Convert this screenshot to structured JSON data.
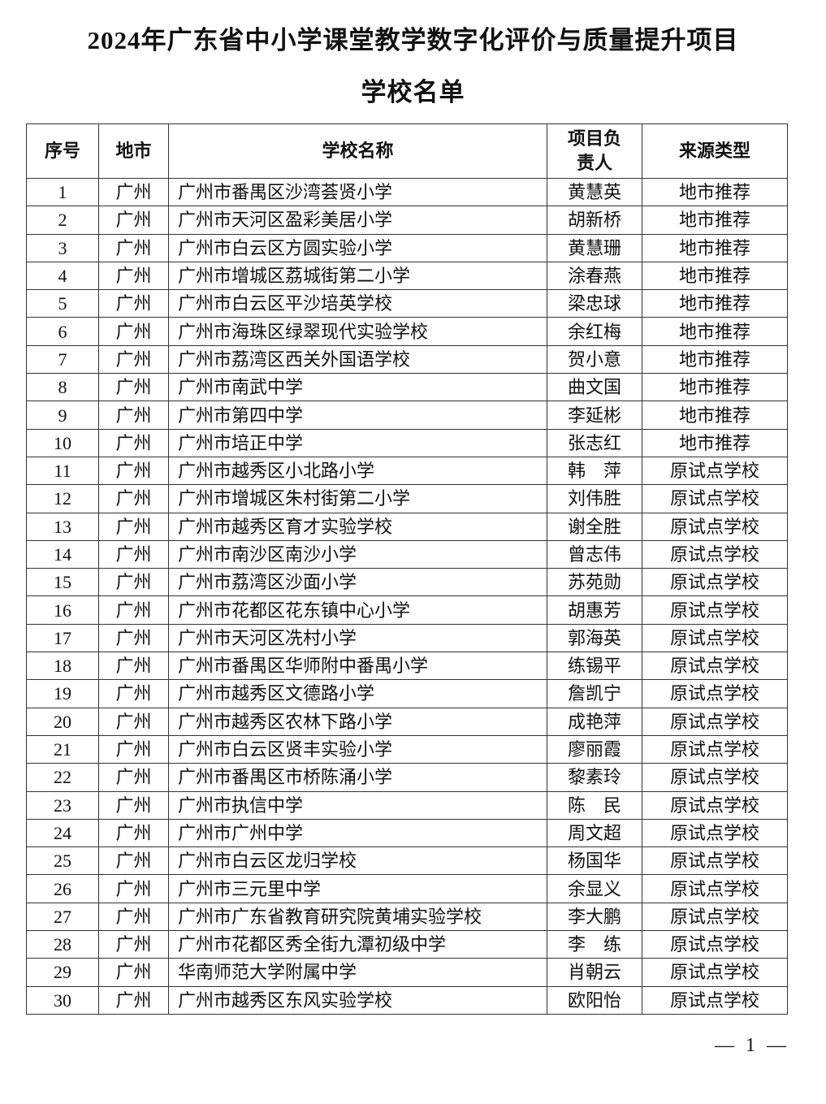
{
  "header": {
    "title": "2024年广东省中小学课堂教学数字化评价与质量提升项目",
    "subtitle": "学校名单"
  },
  "table": {
    "columns": [
      "序号",
      "地市",
      "学校名称",
      "项目负责人",
      "来源类型"
    ],
    "rows": [
      [
        1,
        "广州",
        "广州市番禺区沙湾荟贤小学",
        "黄慧英",
        "地市推荐"
      ],
      [
        2,
        "广州",
        "广州市天河区盈彩美居小学",
        "胡新桥",
        "地市推荐"
      ],
      [
        3,
        "广州",
        "广州市白云区方圆实验小学",
        "黄慧珊",
        "地市推荐"
      ],
      [
        4,
        "广州",
        "广州市增城区荔城街第二小学",
        "涂春燕",
        "地市推荐"
      ],
      [
        5,
        "广州",
        "广州市白云区平沙培英学校",
        "梁忠球",
        "地市推荐"
      ],
      [
        6,
        "广州",
        "广州市海珠区绿翠现代实验学校",
        "余红梅",
        "地市推荐"
      ],
      [
        7,
        "广州",
        "广州市荔湾区西关外国语学校",
        "贺小意",
        "地市推荐"
      ],
      [
        8,
        "广州",
        "广州市南武中学",
        "曲文国",
        "地市推荐"
      ],
      [
        9,
        "广州",
        "广州市第四中学",
        "李延彬",
        "地市推荐"
      ],
      [
        10,
        "广州",
        "广州市培正中学",
        "张志红",
        "地市推荐"
      ],
      [
        11,
        "广州",
        "广州市越秀区小北路小学",
        "韩　萍",
        "原试点学校"
      ],
      [
        12,
        "广州",
        "广州市增城区朱村街第二小学",
        "刘伟胜",
        "原试点学校"
      ],
      [
        13,
        "广州",
        "广州市越秀区育才实验学校",
        "谢全胜",
        "原试点学校"
      ],
      [
        14,
        "广州",
        "广州市南沙区南沙小学",
        "曾志伟",
        "原试点学校"
      ],
      [
        15,
        "广州",
        "广州市荔湾区沙面小学",
        "苏苑勋",
        "原试点学校"
      ],
      [
        16,
        "广州",
        "广州市花都区花东镇中心小学",
        "胡惠芳",
        "原试点学校"
      ],
      [
        17,
        "广州",
        "广州市天河区冼村小学",
        "郭海英",
        "原试点学校"
      ],
      [
        18,
        "广州",
        "广州市番禺区华师附中番禺小学",
        "练锡平",
        "原试点学校"
      ],
      [
        19,
        "广州",
        "广州市越秀区文德路小学",
        "詹凯宁",
        "原试点学校"
      ],
      [
        20,
        "广州",
        "广州市越秀区农林下路小学",
        "成艳萍",
        "原试点学校"
      ],
      [
        21,
        "广州",
        "广州市白云区贤丰实验小学",
        "廖丽霞",
        "原试点学校"
      ],
      [
        22,
        "广州",
        "广州市番禺区市桥陈涌小学",
        "黎素玲",
        "原试点学校"
      ],
      [
        23,
        "广州",
        "广州市执信中学",
        "陈　民",
        "原试点学校"
      ],
      [
        24,
        "广州",
        "广州市广州中学",
        "周文超",
        "原试点学校"
      ],
      [
        25,
        "广州",
        "广州市白云区龙归学校",
        "杨国华",
        "原试点学校"
      ],
      [
        26,
        "广州",
        "广州市三元里中学",
        "余显义",
        "原试点学校"
      ],
      [
        27,
        "广州",
        "广州市广东省教育研究院黄埔实验学校",
        "李大鹏",
        "原试点学校"
      ],
      [
        28,
        "广州",
        "广州市花都区秀全街九潭初级中学",
        "李　练",
        "原试点学校"
      ],
      [
        29,
        "广州",
        "华南师范大学附属中学",
        "肖朝云",
        "原试点学校"
      ],
      [
        30,
        "广州",
        "广州市越秀区东风实验学校",
        "欧阳怡",
        "原试点学校"
      ]
    ]
  },
  "footer": "— 1 —"
}
